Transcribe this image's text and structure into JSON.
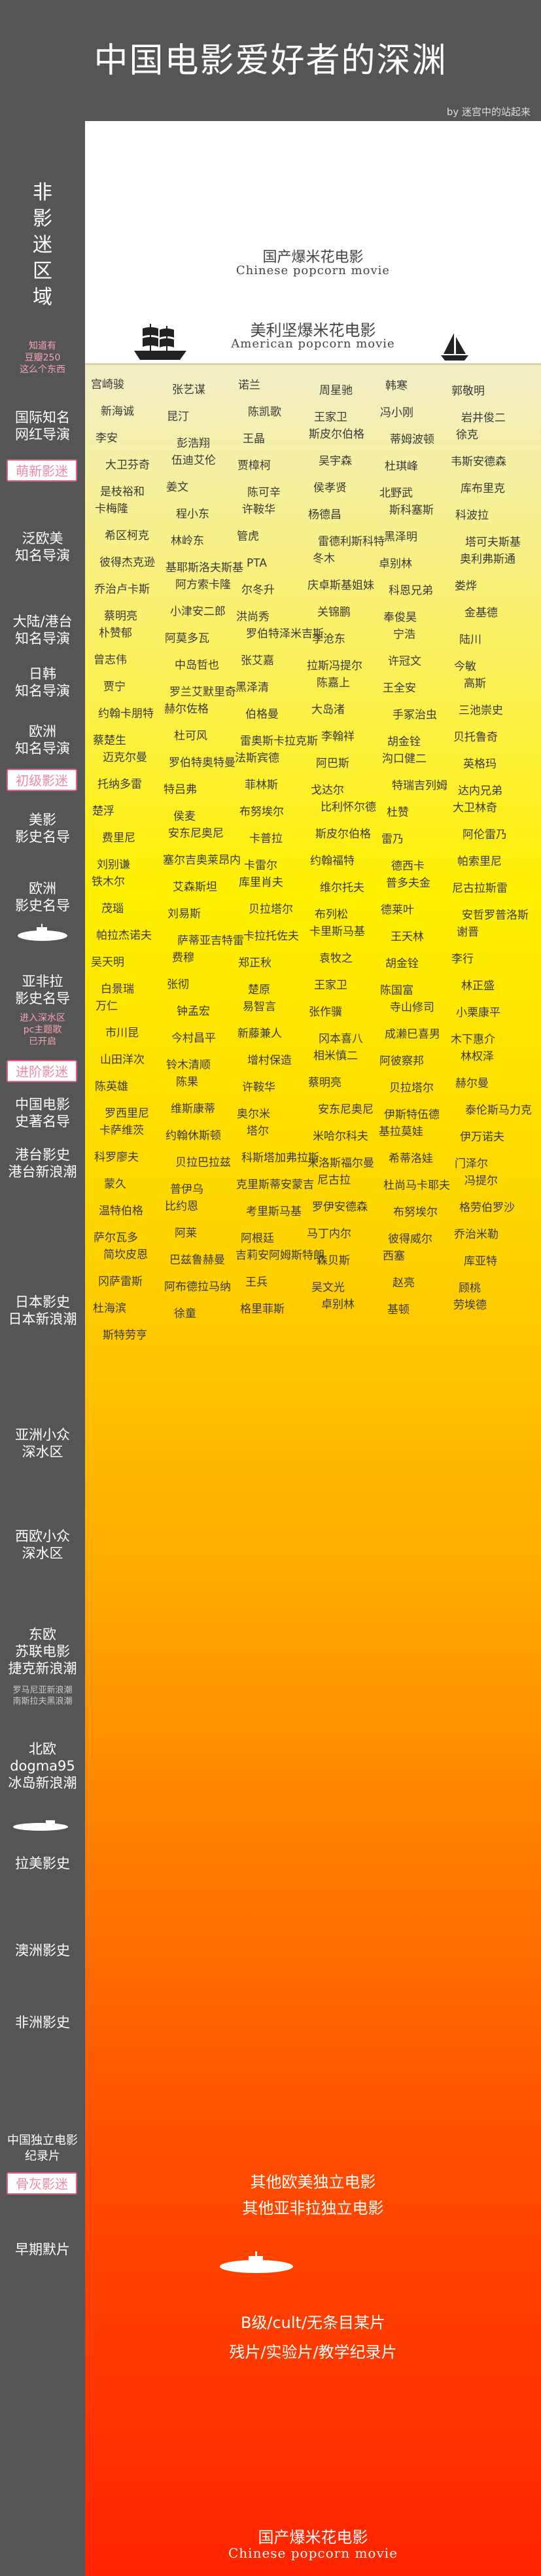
{
  "header": {
    "title": "中国电影爱好者的深渊",
    "byline": "by 迷宫中的站起来"
  },
  "sidebar": {
    "vertical_label": [
      "非",
      "影",
      "迷",
      "区",
      "域"
    ],
    "note_top": [
      "知道有",
      "豆瓣250",
      "这么个东西"
    ],
    "sections": [
      {
        "text": [
          "国际知名",
          "网红导演"
        ]
      },
      {
        "badge": "萌新影迷"
      },
      {
        "text": [
          "泛欧美",
          "知名导演"
        ]
      },
      {
        "text": [
          "大陆/港台",
          "知名导演"
        ]
      },
      {
        "text": [
          "日韩",
          "知名导演"
        ]
      },
      {
        "text": [
          "欧洲",
          "知名导演"
        ]
      },
      {
        "badge": "初级影迷"
      },
      {
        "text": [
          "美影",
          "影史名导"
        ]
      },
      {
        "text": [
          "欧洲",
          "影史名导"
        ]
      },
      {
        "text": [
          "亚非拉",
          "影史名导"
        ]
      },
      {
        "note": [
          "进入深水区",
          "pc主题歌",
          "已开启"
        ]
      },
      {
        "badge": "进阶影迷"
      },
      {
        "text": [
          "中国电影",
          "史著名导"
        ]
      },
      {
        "text": [
          "港台影史",
          "港台新浪潮"
        ]
      },
      {
        "text": [
          "日本影史",
          "日本新浪潮"
        ]
      },
      {
        "text": [
          "亚洲小众",
          "深水区"
        ]
      },
      {
        "text": [
          "西欧小众",
          "深水区"
        ]
      },
      {
        "text": [
          "东欧",
          "苏联电影",
          "捷克新浪潮"
        ]
      },
      {
        "note_small": [
          "罗马尼亚新浪潮",
          "南斯拉夫黑浪潮"
        ]
      },
      {
        "text": [
          "北欧",
          "dogma95",
          "冰岛新浪潮"
        ]
      },
      {
        "text": [
          "拉美影史"
        ]
      },
      {
        "text": [
          "澳洲影史"
        ]
      },
      {
        "text": [
          "非洲影史"
        ]
      },
      {
        "text": [
          "中国独立电影",
          "纪录片"
        ]
      },
      {
        "badge": "骨灰影迷"
      },
      {
        "text": [
          "早期默片"
        ]
      }
    ]
  },
  "main": {
    "top_cn": "国产爆米花电影",
    "top_en": "Chinese popcorn movie",
    "us_cn": "美利坚爆米花电影",
    "us_en": "American popcorn movie",
    "names": [
      "宫崎骏",
      "张艺谋",
      "诺兰",
      "周星驰",
      "韩寒",
      "郭敬明",
      "新海诚",
      "昆汀",
      "陈凯歌",
      "王家卫",
      "冯小刚",
      "岩井俊二",
      "李安",
      "彭浩翔",
      "王晶",
      "斯皮尔伯格",
      "蒂姆波顿",
      "徐克",
      "大卫芬奇",
      "伍迪艾伦",
      "贾樟柯",
      "吴宇森",
      "杜琪峰",
      "韦斯安德森",
      "是枝裕和",
      "姜文",
      "陈可辛",
      "侯孝贤",
      "北野武",
      "库布里克",
      "卡梅隆",
      "程小东",
      "许鞍华",
      "杨德昌",
      "斯科塞斯",
      "科波拉",
      "希区柯克",
      "林岭东",
      "管虎",
      "雷德利斯科特",
      "黑泽明",
      "塔可夫斯基",
      "彼得杰克逊",
      "基耶斯洛夫斯基",
      "PTA",
      "冬木",
      "卓别林",
      "奥利弗斯通",
      "乔治卢卡斯",
      "阿方索卡隆",
      "尔冬升",
      "庆卓斯基姐妹",
      "科恩兄弟",
      "娄烨",
      "蔡明亮",
      "小津安二郎",
      "洪尚秀",
      "关锦鹏",
      "奉俊昊",
      "金基德",
      "朴赞郁",
      "阿莫多瓦",
      "罗伯特泽米吉斯",
      "李沧东",
      "宁浩",
      "陆川",
      "曾志伟",
      "中岛哲也",
      "张艾嘉",
      "拉斯冯提尔",
      "许冠文",
      "今敏",
      "贾宁",
      "罗兰艾默里奇",
      "黑泽清",
      "陈嘉上",
      "王全安",
      "高斯",
      "约翰卡朋特",
      "赫尔佐格",
      "伯格曼",
      "大岛渚",
      "手冢治虫",
      "三池崇史",
      "蔡楚生",
      "杜可风",
      "雷奥斯卡拉克斯",
      "李翰祥",
      "胡金铨",
      "贝托鲁奇",
      "迈克尔曼",
      "罗伯特奥特曼",
      "法斯宾德",
      "阿巴斯",
      "沟口健二",
      "英格玛",
      "托纳多雷",
      "特吕弗",
      "菲林斯",
      "戈达尔",
      "特瑞吉列姆",
      "达内兄弟",
      "楚浮",
      "侯麦",
      "布努埃尔",
      "比利怀尔德",
      "杜赞",
      "大卫林奇",
      "费里尼",
      "安东尼奥尼",
      "卡普拉",
      "斯皮尔伯格",
      "雷乃",
      "阿伦雷乃",
      "刘别谦",
      "塞尔吉奥莱昂内",
      "卡雷尔",
      "约翰福特",
      "德西卡",
      "帕索里尼",
      "铁木尔",
      "艾森斯坦",
      "库里肖夫",
      "维尔托夫",
      "普多夫金",
      "尼古拉斯雷",
      "茂瑙",
      "刘易斯",
      "贝拉塔尔",
      "布列松",
      "德莱叶",
      "安哲罗普洛斯",
      "帕拉杰诺夫",
      "萨蒂亚吉特雷",
      "卡拉托佐夫",
      "卡里斯马基",
      "王天林",
      "谢晋",
      "吴天明",
      "费穆",
      "郑正秋",
      "袁牧之",
      "胡金铨",
      "李行",
      "白景瑞",
      "张彻",
      "楚原",
      "王家卫",
      "陈国富",
      "林正盛",
      "万仁",
      "钟孟宏",
      "易智言",
      "张作骥",
      "寺山修司",
      "小栗康平",
      "市川昆",
      "今村昌平",
      "新藤兼人",
      "冈本喜八",
      "成濑巳喜男",
      "木下惠介",
      "山田洋次",
      "铃木清顺",
      "增村保造",
      "相米慎二",
      "阿彼察邦",
      "林权泽",
      "陈英雄",
      "陈果",
      "许鞍华",
      "蔡明亮",
      "贝拉塔尔",
      "赫尔曼",
      "罗西里尼",
      "维斯康蒂",
      "奥尔米",
      "安东尼奥尼",
      "伊斯特伍德",
      "泰伦斯马力克",
      "卡萨维茨",
      "约翰休斯顿",
      "塔尔",
      "米哈尔科夫",
      "基拉莫娃",
      "伊万诺夫",
      "科罗廖夫",
      "贝拉巴拉兹",
      "科斯塔加弗拉斯",
      "米洛斯福尔曼",
      "希蒂洛娃",
      "门泽尔",
      "蒙久",
      "普伊乌",
      "克里斯蒂安蒙吉",
      "尼古拉",
      "杜尚马卡耶夫",
      "冯提尔",
      "温特伯格",
      "比约恩",
      "考里斯马基",
      "罗伊安德森",
      "布努埃尔",
      "格劳伯罗沙",
      "萨尔瓦多",
      "阿莱",
      "阿根廷",
      "马丁内尔",
      "彼得威尔",
      "乔治米勒",
      "简坎皮恩",
      "巴兹鲁赫曼",
      "吉莉安阿姆斯特朗",
      "森贝斯",
      "西塞",
      "库亚特",
      "冈萨雷斯",
      "阿布德拉马纳",
      "王兵",
      "吴文光",
      "赵亮",
      "顾桃",
      "杜海滨",
      "徐童",
      "格里菲斯",
      "卓别林",
      "基顿",
      "劳埃德",
      "斯特劳亨"
    ]
  },
  "deep": {
    "line1": "其他欧美独立电影",
    "line2": "其他亚非拉独立电影",
    "line3": "B级/cult/无条目某片",
    "line4": "残片/实验片/教学纪录片",
    "bottom_cn": "国产爆米花电影",
    "bottom_en": "Chinese popcorn movie"
  },
  "colors": {
    "sidebar": "#555555",
    "badge_text": "#f28aa5",
    "badge_border": "#e0647f",
    "gradient_top": "#f2efc8",
    "gradient_yellow": "#fff000",
    "gradient_orange": "#ffaa00",
    "gradient_bottom": "#ff2400"
  },
  "icons": [
    "sailing-ship-icon",
    "sailboat-icon",
    "submarine-icon"
  ]
}
